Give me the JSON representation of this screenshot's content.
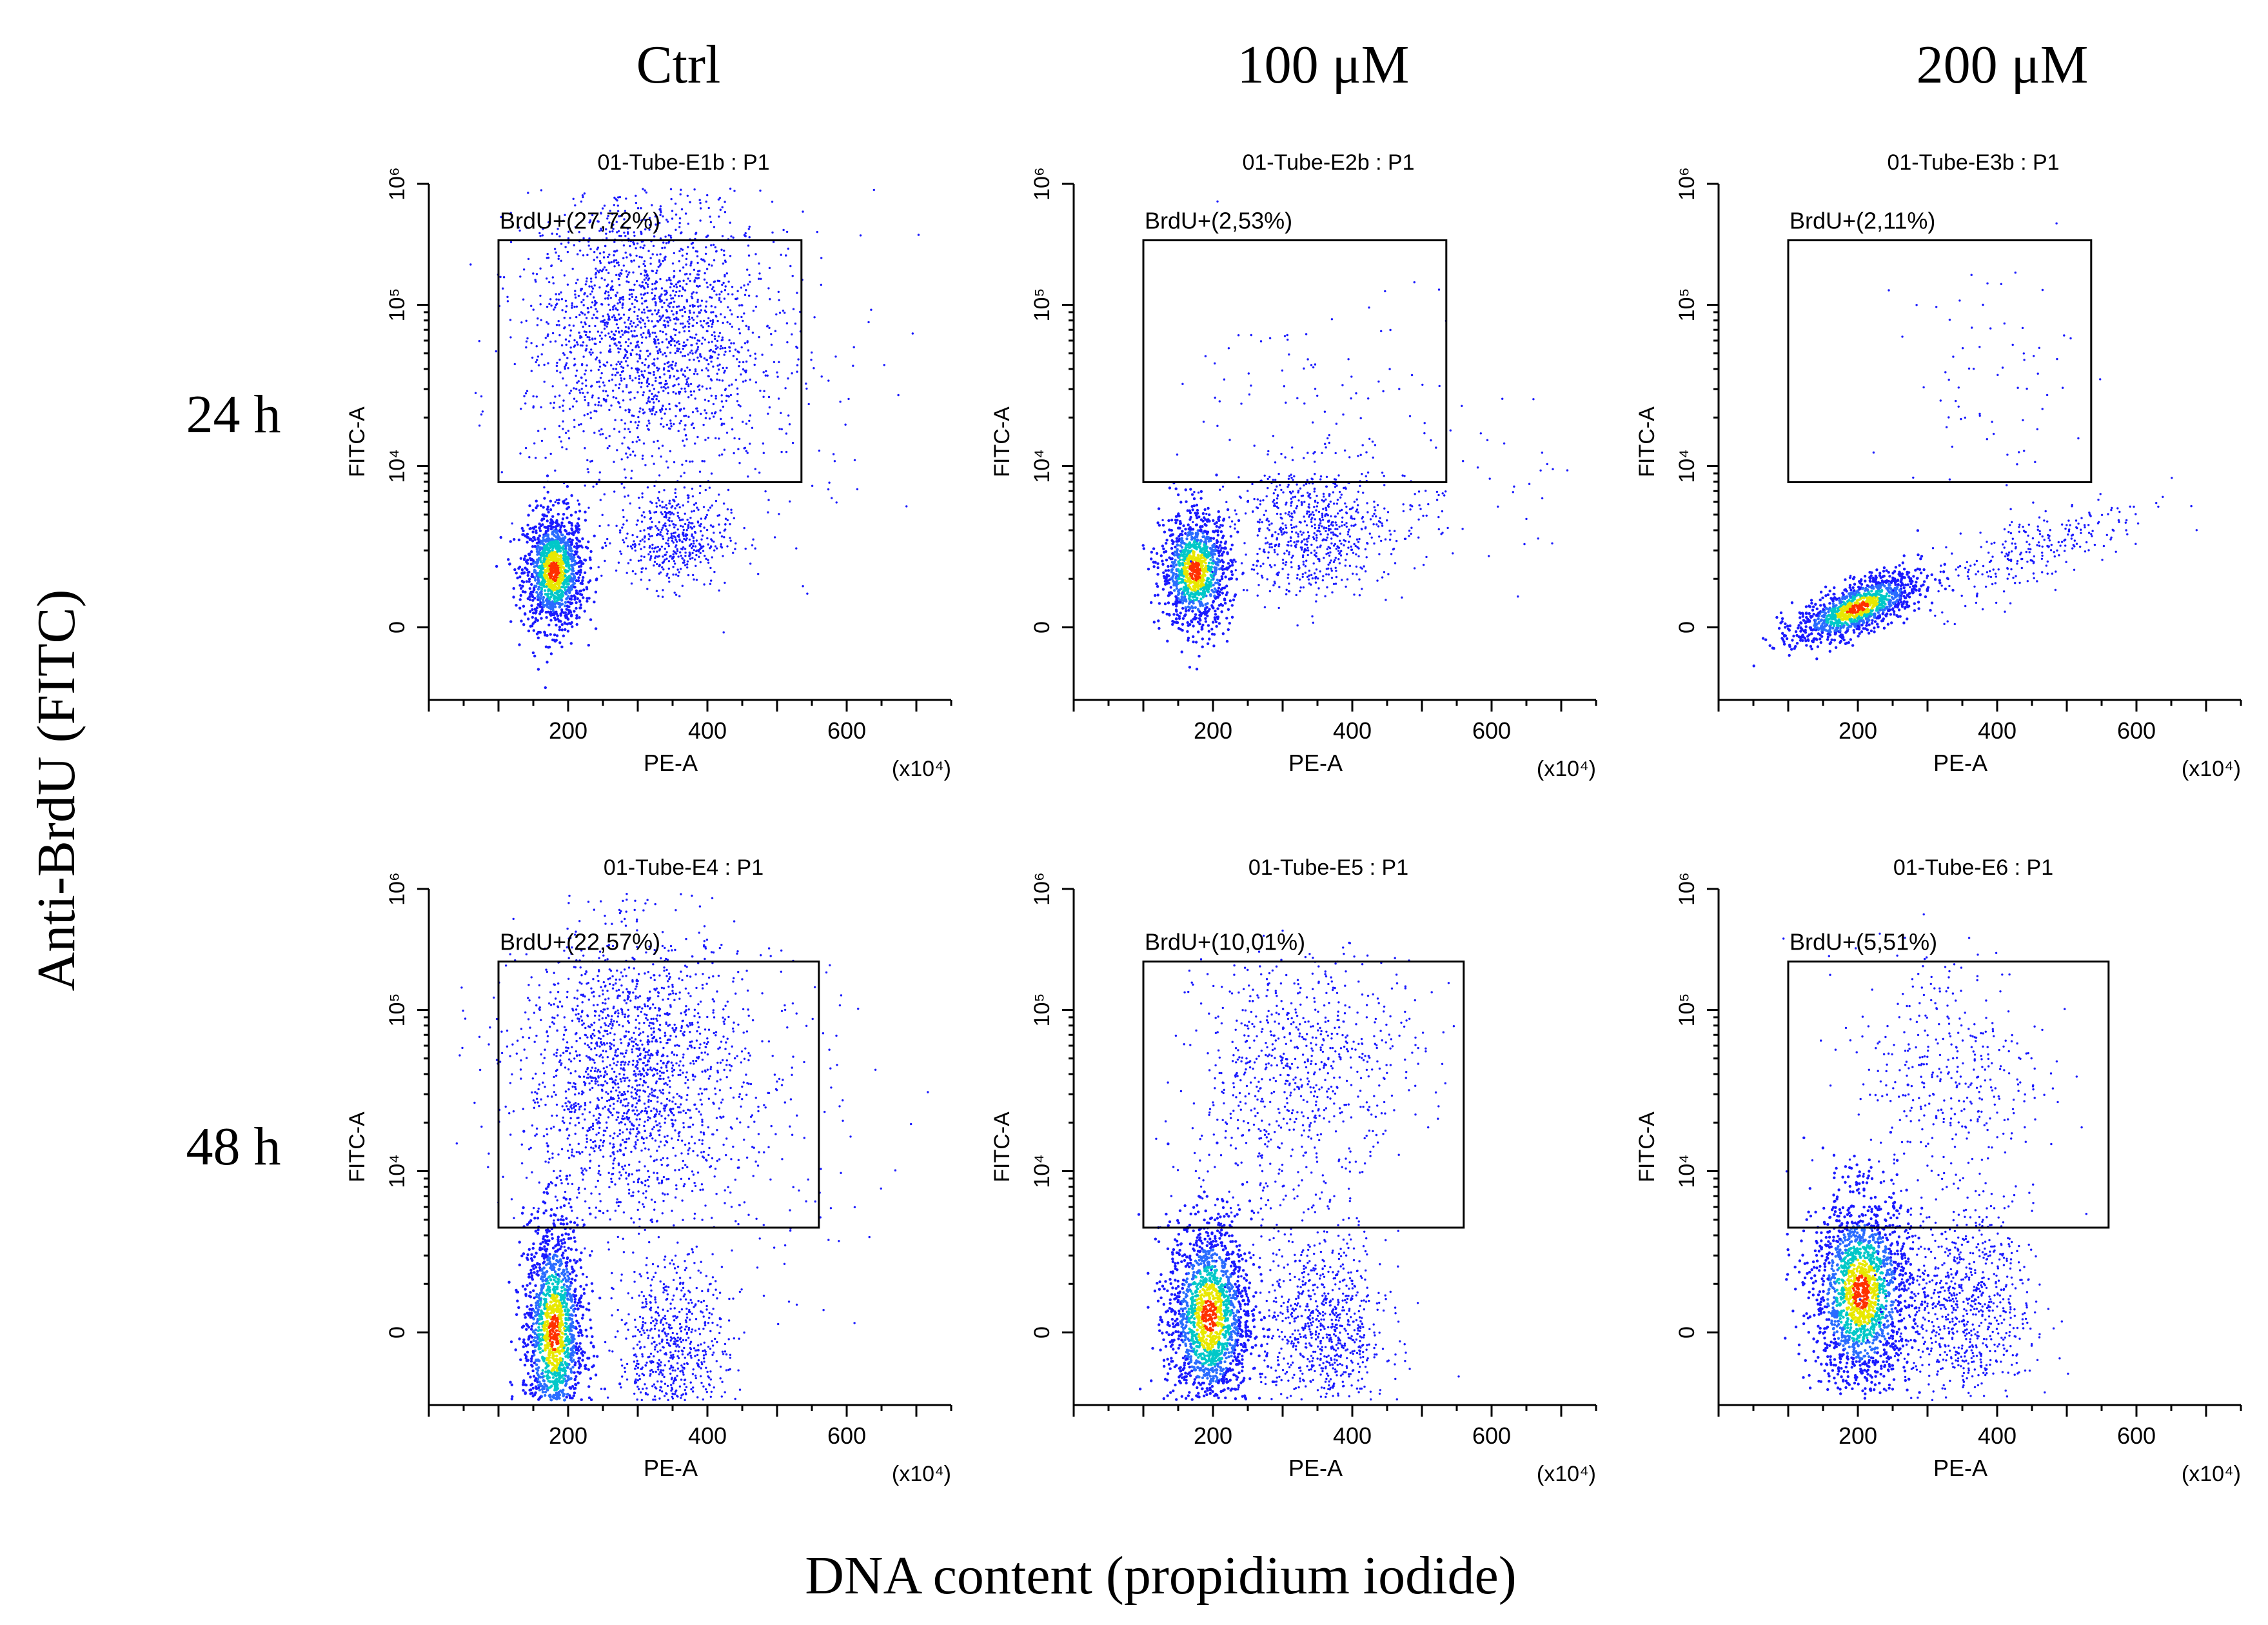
{
  "columns": [
    "Ctrl",
    "100 μM",
    "200 μM"
  ],
  "rows": [
    "24 h",
    "48 h"
  ],
  "y_axis_title": "Anti-BrdU (FITC)",
  "x_axis_title": "DNA content (propidium iodide)",
  "colors": {
    "sparse": "#1a1aff",
    "dense_mid": "#00c8c8",
    "dense_high": "#e8e800",
    "peak": "#ff3000"
  },
  "chart_data": [
    {
      "type": "scatter",
      "title": "01-Tube-E1b : P1",
      "gate_label": "BrdU+(27,72%)",
      "gate_percent": 27.72,
      "xlabel": "PE-A",
      "ylabel": "FITC-A",
      "x_multiplier": "(x10⁴)",
      "x_ticks": [
        "200",
        "400",
        "600"
      ],
      "y_ticks": [
        "0",
        "10⁴",
        "10⁵",
        "10⁶"
      ],
      "xlim": [
        0,
        750
      ],
      "populations": [
        {
          "cx": 180,
          "cy": 0.35,
          "sx": 22,
          "sy": 0.18,
          "n": 1300,
          "dense": true
        },
        {
          "cx": 350,
          "cy": 0.55,
          "sx": 40,
          "sy": 0.15,
          "n": 450
        },
        {
          "cx": 310,
          "cy": 1.85,
          "sx": 85,
          "sy": 0.45,
          "n": 1900
        },
        {
          "cx": 480,
          "cy": 1.6,
          "sx": 90,
          "sy": 0.6,
          "n": 140
        }
      ],
      "gate": {
        "x": [
          100,
          535
        ],
        "y": [
          0.9,
          2.4
        ]
      }
    },
    {
      "type": "scatter",
      "title": "01-Tube-E2b : P1",
      "gate_label": "BrdU+(2,53%)",
      "gate_percent": 2.53,
      "xlabel": "PE-A",
      "ylabel": "FITC-A",
      "x_multiplier": "(x10⁴)",
      "x_ticks": [
        "200",
        "400",
        "600"
      ],
      "y_ticks": [
        "0",
        "10⁴",
        "10⁵",
        "10⁶"
      ],
      "xlim": [
        0,
        750
      ],
      "populations": [
        {
          "cx": 175,
          "cy": 0.35,
          "sx": 25,
          "sy": 0.18,
          "n": 1100,
          "dense": true
        },
        {
          "cx": 340,
          "cy": 0.6,
          "sx": 55,
          "sy": 0.2,
          "n": 650
        },
        {
          "cx": 380,
          "cy": 1.3,
          "sx": 110,
          "sy": 0.45,
          "n": 110
        },
        {
          "cx": 520,
          "cy": 0.75,
          "sx": 80,
          "sy": 0.2,
          "n": 70
        }
      ],
      "gate": {
        "x": [
          100,
          535
        ],
        "y": [
          0.9,
          2.4
        ]
      }
    },
    {
      "type": "scatter",
      "title": "01-Tube-E3b : P1",
      "gate_label": "BrdU+(2,11%)",
      "gate_percent": 2.11,
      "xlabel": "PE-A",
      "ylabel": "FITC-A",
      "x_multiplier": "(x10⁴)",
      "x_ticks": [
        "200",
        "400",
        "600"
      ],
      "y_ticks": [
        "0",
        "10⁴",
        "10⁵",
        "10⁶"
      ],
      "xlim": [
        0,
        750
      ],
      "populations": [
        {
          "cx": 200,
          "cy": 0.12,
          "sx": 45,
          "sy": 0.08,
          "n": 1200,
          "dense": true,
          "slope": 0.0016
        },
        {
          "cx": 460,
          "cy": 0.5,
          "sx": 80,
          "sy": 0.12,
          "n": 260,
          "slope": 0.0016
        },
        {
          "cx": 390,
          "cy": 1.55,
          "sx": 60,
          "sy": 0.35,
          "n": 70
        }
      ],
      "gate": {
        "x": [
          100,
          535
        ],
        "y": [
          0.9,
          2.4
        ]
      }
    },
    {
      "type": "scatter",
      "title": "01-Tube-E4 : P1",
      "gate_label": "BrdU+(22,57%)",
      "gate_percent": 22.57,
      "xlabel": "PE-A",
      "ylabel": "FITC-A",
      "x_multiplier": "(x10⁴)",
      "x_ticks": [
        "200",
        "400",
        "600"
      ],
      "y_ticks": [
        "0",
        "10⁴",
        "10⁵",
        "10⁶"
      ],
      "xlim": [
        0,
        750
      ],
      "populations": [
        {
          "cx": 180,
          "cy": 0.0,
          "sx": 22,
          "sy": 0.35,
          "n": 1500,
          "dense": true
        },
        {
          "cx": 350,
          "cy": -0.15,
          "sx": 40,
          "sy": 0.3,
          "n": 700
        },
        {
          "cx": 290,
          "cy": 1.6,
          "sx": 80,
          "sy": 0.45,
          "n": 1800
        },
        {
          "cx": 470,
          "cy": 1.3,
          "sx": 90,
          "sy": 0.55,
          "n": 150
        }
      ],
      "gate": {
        "x": [
          100,
          560
        ],
        "y": [
          0.65,
          2.3
        ]
      }
    },
    {
      "type": "scatter",
      "title": "01-Tube-E5 : P1",
      "gate_label": "BrdU+(10,01%)",
      "gate_percent": 10.01,
      "xlabel": "PE-A",
      "ylabel": "FITC-A",
      "x_multiplier": "(x10⁴)",
      "x_ticks": [
        "200",
        "400",
        "600"
      ],
      "y_ticks": [
        "0",
        "10⁴",
        "10⁵",
        "10⁶"
      ],
      "xlim": [
        0,
        750
      ],
      "populations": [
        {
          "cx": 195,
          "cy": 0.1,
          "sx": 30,
          "sy": 0.3,
          "n": 1700,
          "dense": true
        },
        {
          "cx": 360,
          "cy": 0.0,
          "sx": 45,
          "sy": 0.3,
          "n": 800
        },
        {
          "cx": 340,
          "cy": 1.75,
          "sx": 80,
          "sy": 0.3,
          "n": 550
        },
        {
          "cx": 270,
          "cy": 1.1,
          "sx": 70,
          "sy": 0.4,
          "n": 250
        }
      ],
      "gate": {
        "x": [
          100,
          560
        ],
        "y": [
          0.65,
          2.3
        ]
      }
    },
    {
      "type": "scatter",
      "title": "01-Tube-E6 : P1",
      "gate_label": "BrdU+(5,51%)",
      "gate_percent": 5.51,
      "xlabel": "PE-A",
      "ylabel": "FITC-A",
      "x_multiplier": "(x10⁴)",
      "x_ticks": [
        "200",
        "400",
        "600"
      ],
      "y_ticks": [
        "0",
        "10⁴",
        "10⁵",
        "10⁶"
      ],
      "xlim": [
        0,
        750
      ],
      "populations": [
        {
          "cx": 205,
          "cy": 0.25,
          "sx": 35,
          "sy": 0.3,
          "n": 1800,
          "dense": true
        },
        {
          "cx": 350,
          "cy": 0.15,
          "sx": 50,
          "sy": 0.3,
          "n": 800
        },
        {
          "cx": 330,
          "cy": 1.6,
          "sx": 70,
          "sy": 0.4,
          "n": 400
        }
      ],
      "gate": {
        "x": [
          100,
          560
        ],
        "y": [
          0.65,
          2.3
        ]
      }
    }
  ]
}
